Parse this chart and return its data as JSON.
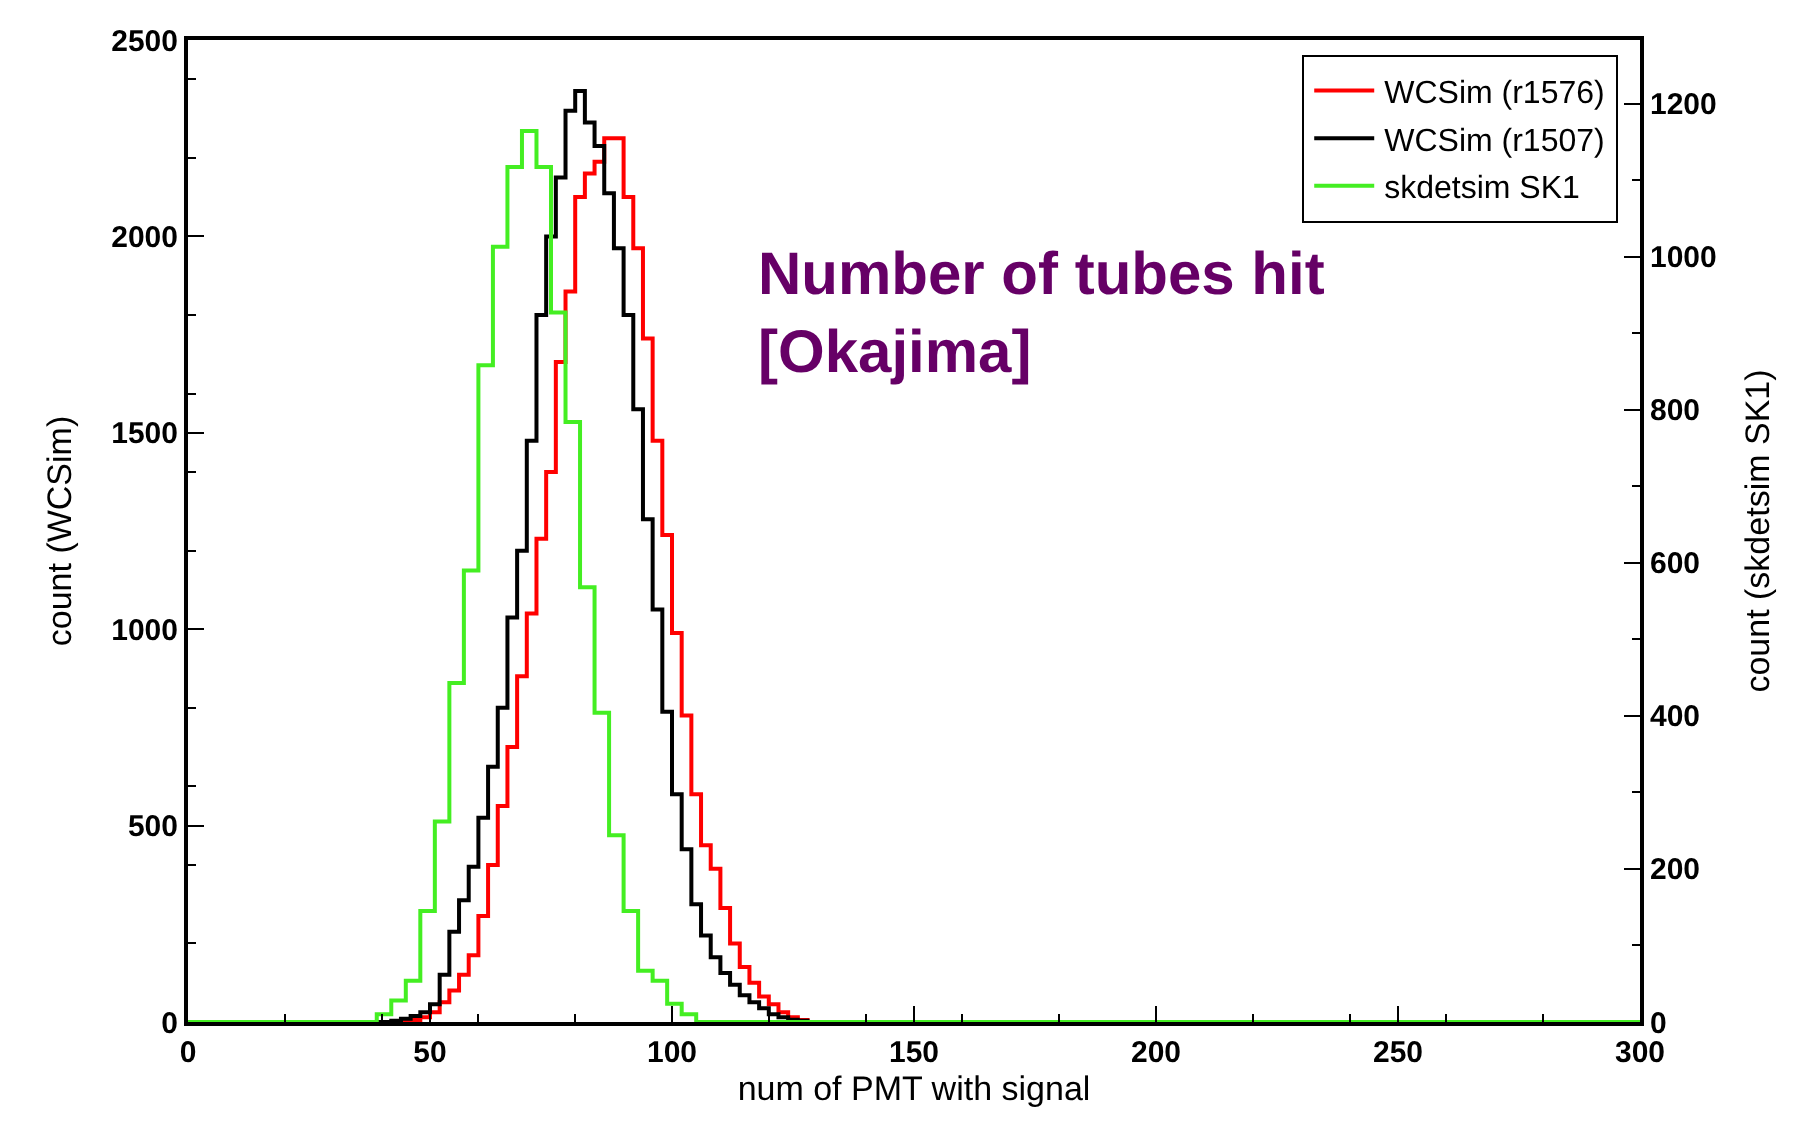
{
  "chart_data": {
    "type": "step",
    "xlabel": "num of PMT with signal",
    "ylabel": "count (WCSim)",
    "y2label": "count (skdetsim SK1)",
    "annotations": [
      "Number of tubes hit\n[Okajima]"
    ],
    "series": [
      {
        "name": "WCSim (r1576)",
        "color": "#ff0000",
        "x": [
          42,
          44,
          46,
          48,
          50,
          52,
          54,
          56,
          58,
          60,
          62,
          64,
          66,
          68,
          70,
          72,
          74,
          76,
          78,
          80,
          82,
          84,
          86,
          88,
          90,
          92,
          94,
          96,
          98,
          100,
          102,
          104,
          106,
          108,
          110,
          112,
          114,
          116,
          118,
          120,
          122,
          124,
          126,
          128,
          130,
          300
        ],
        "values": [
          0,
          2,
          5,
          12,
          25,
          50,
          80,
          120,
          170,
          270,
          400,
          550,
          700,
          880,
          1040,
          1230,
          1400,
          1680,
          1860,
          2100,
          2160,
          2190,
          2250,
          2250,
          2100,
          1970,
          1740,
          1480,
          1240,
          990,
          780,
          580,
          450,
          390,
          290,
          200,
          140,
          100,
          65,
          45,
          25,
          12,
          5,
          0,
          0,
          0
        ]
      },
      {
        "name": "WCSim (r1507)",
        "color": "#000000",
        "x": [
          0,
          40,
          42,
          44,
          46,
          48,
          50,
          52,
          54,
          56,
          58,
          60,
          62,
          64,
          66,
          68,
          70,
          72,
          74,
          76,
          78,
          80,
          82,
          84,
          86,
          88,
          90,
          92,
          94,
          96,
          98,
          100,
          102,
          104,
          106,
          108,
          110,
          112,
          114,
          116,
          118,
          120,
          122,
          124,
          126,
          128,
          130,
          300
        ],
        "values": [
          0,
          0,
          3,
          8,
          15,
          25,
          45,
          120,
          230,
          310,
          395,
          520,
          650,
          800,
          1030,
          1200,
          1480,
          1800,
          2000,
          2150,
          2320,
          2370,
          2290,
          2230,
          2110,
          1970,
          1800,
          1560,
          1280,
          1050,
          790,
          580,
          440,
          300,
          220,
          165,
          125,
          95,
          68,
          50,
          35,
          20,
          12,
          6,
          3,
          0,
          0,
          0
        ]
      },
      {
        "name": "skdetsim SK1",
        "color": "#44ee22",
        "axis": "y2",
        "x": [
          0,
          39,
          42,
          45,
          48,
          51,
          54,
          57,
          60,
          63,
          66,
          69,
          72,
          75,
          78,
          81,
          84,
          87,
          90,
          93,
          96,
          99,
          102,
          105,
          300
        ],
        "values": [
          0,
          10,
          28,
          54,
          145,
          262,
          443,
          590,
          858,
          1013,
          1117,
          1164,
          1117,
          927,
          784,
          568,
          404,
          244,
          145,
          67,
          54,
          24,
          10,
          0,
          0
        ]
      }
    ],
    "xlim": [
      0,
      300
    ],
    "xticks": [
      0,
      50,
      100,
      150,
      200,
      250,
      300
    ],
    "ylim": [
      0,
      2500
    ],
    "yticks": [
      0,
      500,
      1000,
      1500,
      2000,
      2500
    ],
    "y2lim": [
      0,
      1283
    ],
    "y2ticks": [
      0,
      200,
      400,
      600,
      800,
      1000,
      1200
    ],
    "legend": "top right"
  }
}
